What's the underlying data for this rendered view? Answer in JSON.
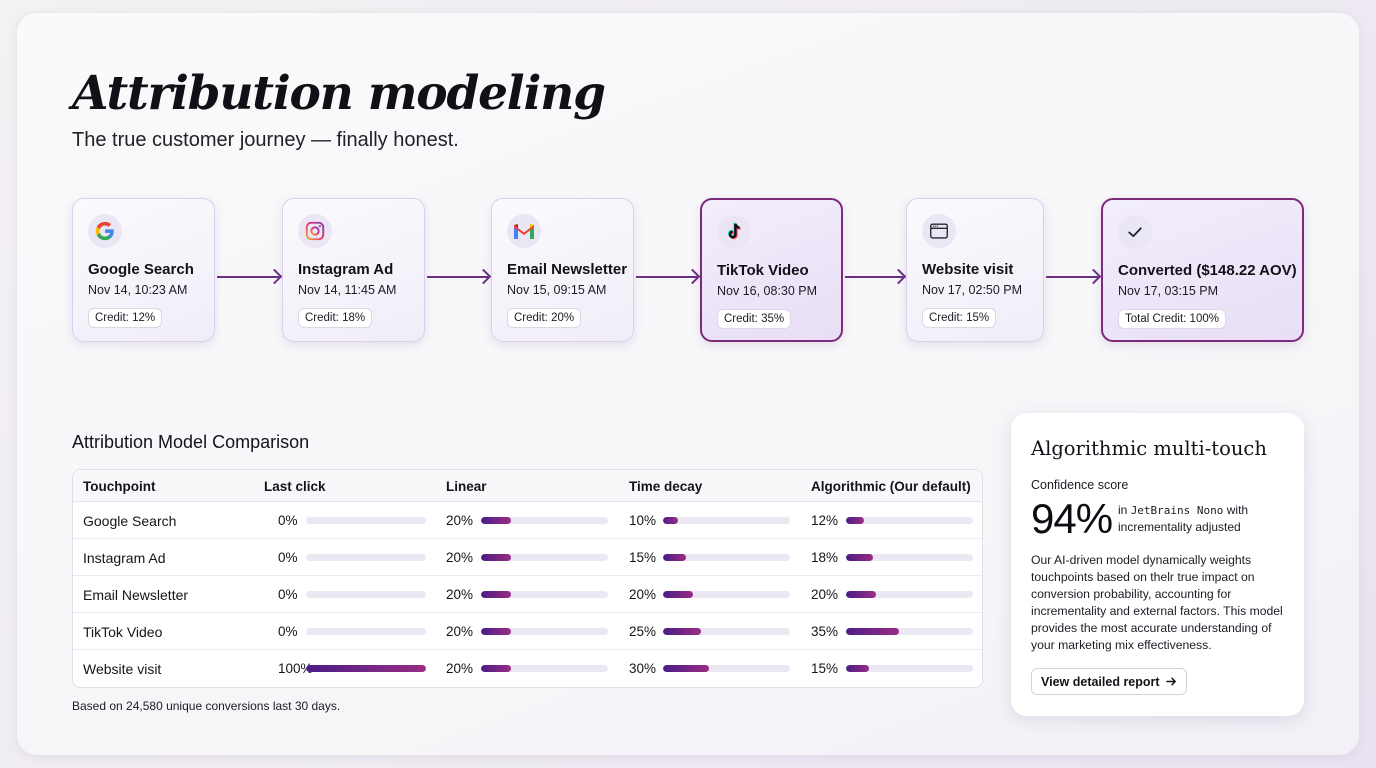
{
  "header": {
    "title": "Attribution modeling",
    "subtitle": "The true customer journey — finally honest."
  },
  "journey": [
    {
      "name": "Google Search",
      "time": "Nov 14, 10:23 AM",
      "credit": "Credit: 12%",
      "icon": "google-icon",
      "highlight": false
    },
    {
      "name": "Instagram Ad",
      "time": "Nov 14, 11:45 AM",
      "credit": "Credit: 18%",
      "icon": "instagram-icon",
      "highlight": false
    },
    {
      "name": "Email Newsletter",
      "time": "Nov 15, 09:15 AM",
      "credit": "Credit: 20%",
      "icon": "gmail-icon",
      "highlight": false
    },
    {
      "name": "TikTok Video",
      "time": "Nov 16, 08:30 PM",
      "credit": "Credit: 35%",
      "icon": "tiktok-icon",
      "highlight": true
    },
    {
      "name": "Website visit",
      "time": "Nov 17, 02:50 PM",
      "credit": "Credit: 15%",
      "icon": "browser-window-icon",
      "highlight": false
    },
    {
      "name": "Converted ($148.22 AOV)",
      "time": "Nov 17, 03:15 PM",
      "credit": "Total Credit: 100%",
      "icon": "checkmark-icon",
      "highlight": true
    }
  ],
  "comparison": {
    "title": "Attribution Model Comparison",
    "columns": [
      "Touchpoint",
      "Last click",
      "Linear",
      "Time decay",
      "Algorithmic (Our default)"
    ],
    "rows": [
      {
        "touchpoint": "Google Search",
        "values": [
          "0%",
          "20%",
          "10%",
          "12%"
        ],
        "levels": [
          0,
          20,
          10,
          12
        ]
      },
      {
        "touchpoint": "Instagram Ad",
        "values": [
          "0%",
          "20%",
          "15%",
          "18%"
        ],
        "levels": [
          0,
          20,
          15,
          18
        ]
      },
      {
        "touchpoint": "Email Newsletter",
        "values": [
          "0%",
          "20%",
          "20%",
          "20%"
        ],
        "levels": [
          0,
          20,
          20,
          20
        ]
      },
      {
        "touchpoint": "TikTok Video",
        "values": [
          "0%",
          "20%",
          "25%",
          "35%"
        ],
        "levels": [
          0,
          20,
          25,
          35
        ]
      },
      {
        "touchpoint": "Website visit",
        "values": [
          "100%",
          "20%",
          "30%",
          "15%"
        ],
        "levels": [
          100,
          20,
          30,
          15
        ]
      }
    ],
    "footnote": "Based on 24,580 unique conversions last 30 days."
  },
  "algorithmic": {
    "title": "Algorithmic multi-touch",
    "confidence_label": "Confidence score",
    "score": "94%",
    "note_prefix": "in",
    "note_mono": "JetBrains Nono",
    "note_suffix": "with",
    "note_line2": "incrementality adjusted",
    "description": "Our AI-driven model dynamically weights touchpoints based on thelr true impact on conversion probability, accounting for incrementality and external factors. This model provides the most accurate understanding of your marketing mix effectiveness.",
    "button_label": "View detailed report",
    "button_icon": "arrow-right-icon"
  },
  "colors": {
    "accent_start": "#4b1d86",
    "accent_end": "#9a2d83",
    "highlight_border": "#7c2a7a"
  }
}
